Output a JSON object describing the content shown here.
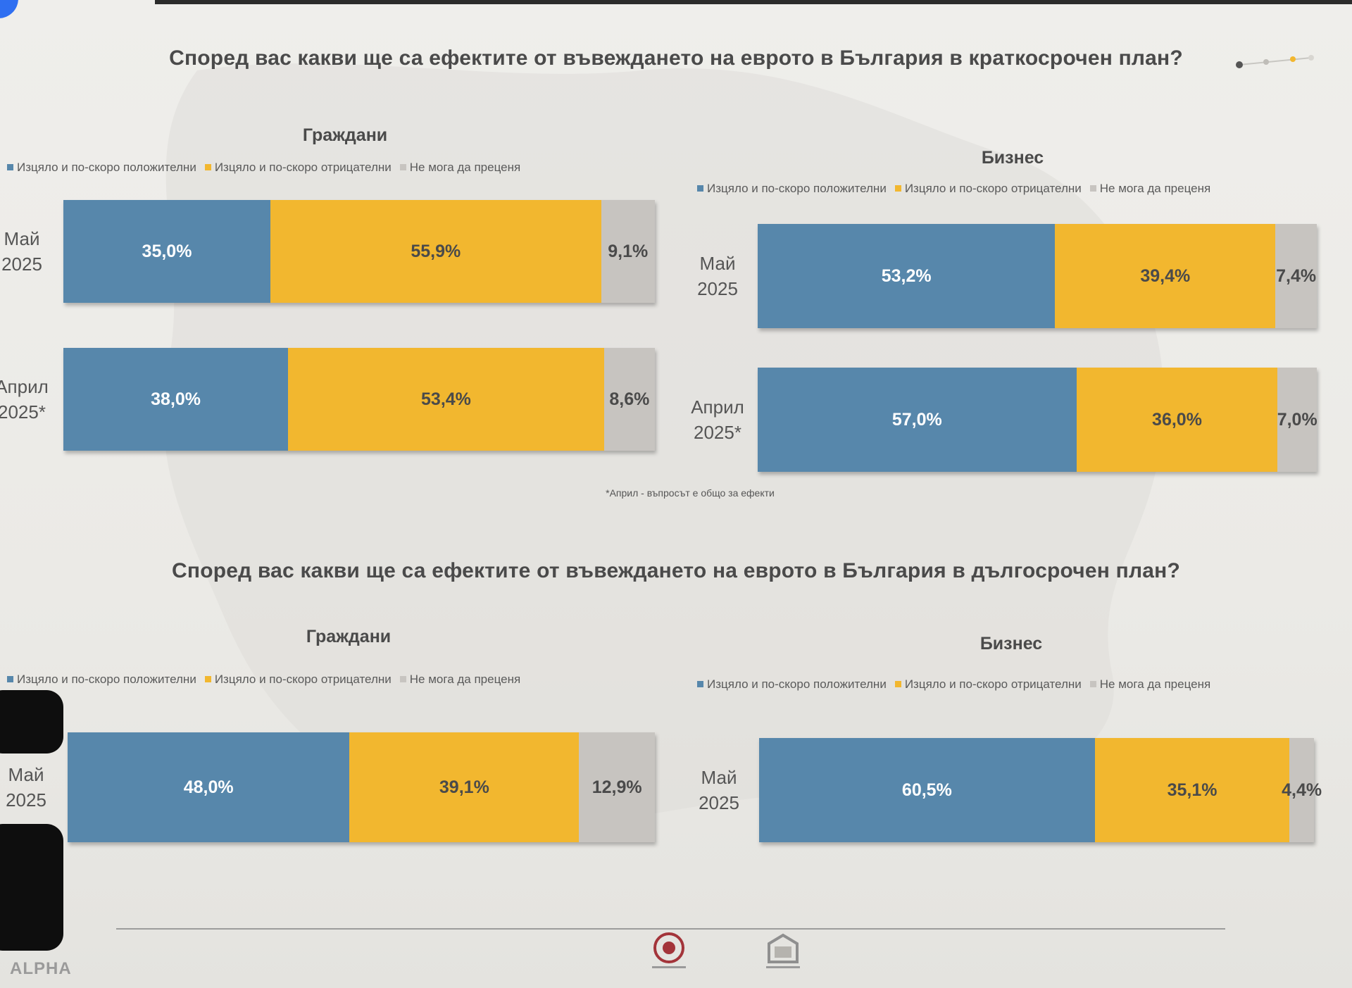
{
  "colors": {
    "positive": "#5787ab",
    "negative": "#f2b72f",
    "undecided": "#c7c4c0"
  },
  "branding": {
    "logo_text": "ALPHA"
  },
  "footnote": "*Април - въпросът е общо за ефекти",
  "chart_data": [
    {
      "type": "bar",
      "orientation": "horizontal",
      "stacked": true,
      "title": "Според вас какви ще са ефектите от въвеждането на еврото в България в краткосрочен план?",
      "subtitle": "Граждани",
      "legend": [
        "Изцяло и по-скоро положителни",
        "Изцяло и по-скоро отрицателни",
        "Не мога да преценя"
      ],
      "legend_position": "top",
      "xlim": [
        0,
        100
      ],
      "categories": [
        [
          "Май",
          "2025"
        ],
        [
          "Април",
          "2025*"
        ]
      ],
      "series": [
        {
          "name": "Изцяло и по-скоро положителни",
          "values": [
            35.0,
            38.0
          ],
          "labels": [
            "35,0%",
            "38,0%"
          ]
        },
        {
          "name": "Изцяло и по-скоро отрицателни",
          "values": [
            55.9,
            53.4
          ],
          "labels": [
            "55,9%",
            "53,4%"
          ]
        },
        {
          "name": "Не мога да преценя",
          "values": [
            9.1,
            8.6
          ],
          "labels": [
            "9,1%",
            "8,6%"
          ]
        }
      ]
    },
    {
      "type": "bar",
      "orientation": "horizontal",
      "stacked": true,
      "title": "Според вас какви ще са ефектите от въвеждането на еврото в България в краткосрочен план?",
      "subtitle": "Бизнес",
      "legend": [
        "Изцяло и по-скоро положителни",
        "Изцяло и по-скоро отрицателни",
        "Не мога да преценя"
      ],
      "legend_position": "top",
      "xlim": [
        0,
        100
      ],
      "categories": [
        [
          "Май",
          "2025"
        ],
        [
          "Април",
          "2025*"
        ]
      ],
      "series": [
        {
          "name": "Изцяло и по-скоро положителни",
          "values": [
            53.2,
            57.0
          ],
          "labels": [
            "53,2%",
            "57,0%"
          ]
        },
        {
          "name": "Изцяло и по-скоро отрицателни",
          "values": [
            39.4,
            36.0
          ],
          "labels": [
            "39,4%",
            "36,0%"
          ]
        },
        {
          "name": "Не мога да преценя",
          "values": [
            7.4,
            7.0
          ],
          "labels": [
            "7,4%",
            "7,0%"
          ]
        }
      ]
    },
    {
      "type": "bar",
      "orientation": "horizontal",
      "stacked": true,
      "title": "Според вас какви ще са ефектите от въвеждането на еврото в България в дългосрочен план?",
      "subtitle": "Граждани",
      "legend": [
        "Изцяло и по-скоро положителни",
        "Изцяло и по-скоро отрицателни",
        "Не мога да преценя"
      ],
      "legend_position": "top",
      "xlim": [
        0,
        100
      ],
      "categories": [
        [
          "Май",
          "2025"
        ]
      ],
      "series": [
        {
          "name": "Изцяло и по-скоро положителни",
          "values": [
            48.0
          ],
          "labels": [
            "48,0%"
          ]
        },
        {
          "name": "Изцяло и по-скоро отрицателни",
          "values": [
            39.1
          ],
          "labels": [
            "39,1%"
          ]
        },
        {
          "name": "Не мога да преценя",
          "values": [
            12.9
          ],
          "labels": [
            "12,9%"
          ]
        }
      ]
    },
    {
      "type": "bar",
      "orientation": "horizontal",
      "stacked": true,
      "title": "Според вас какви ще са ефектите от въвеждането на еврото в България в дългосрочен план?",
      "subtitle": "Бизнес",
      "legend": [
        "Изцяло и по-скоро положителни",
        "Изцяло и по-скоро отрицателни",
        "Не мога да преценя"
      ],
      "legend_position": "top",
      "xlim": [
        0,
        100
      ],
      "categories": [
        [
          "Май",
          "2025"
        ]
      ],
      "series": [
        {
          "name": "Изцяло и по-скоро положителни",
          "values": [
            60.5
          ],
          "labels": [
            "60,5%"
          ]
        },
        {
          "name": "Изцяло и по-скоро отрицателни",
          "values": [
            35.1
          ],
          "labels": [
            "35,1%"
          ]
        },
        {
          "name": "Не мога да преценя",
          "values": [
            4.4
          ],
          "labels": [
            "4,4%"
          ]
        }
      ]
    }
  ]
}
